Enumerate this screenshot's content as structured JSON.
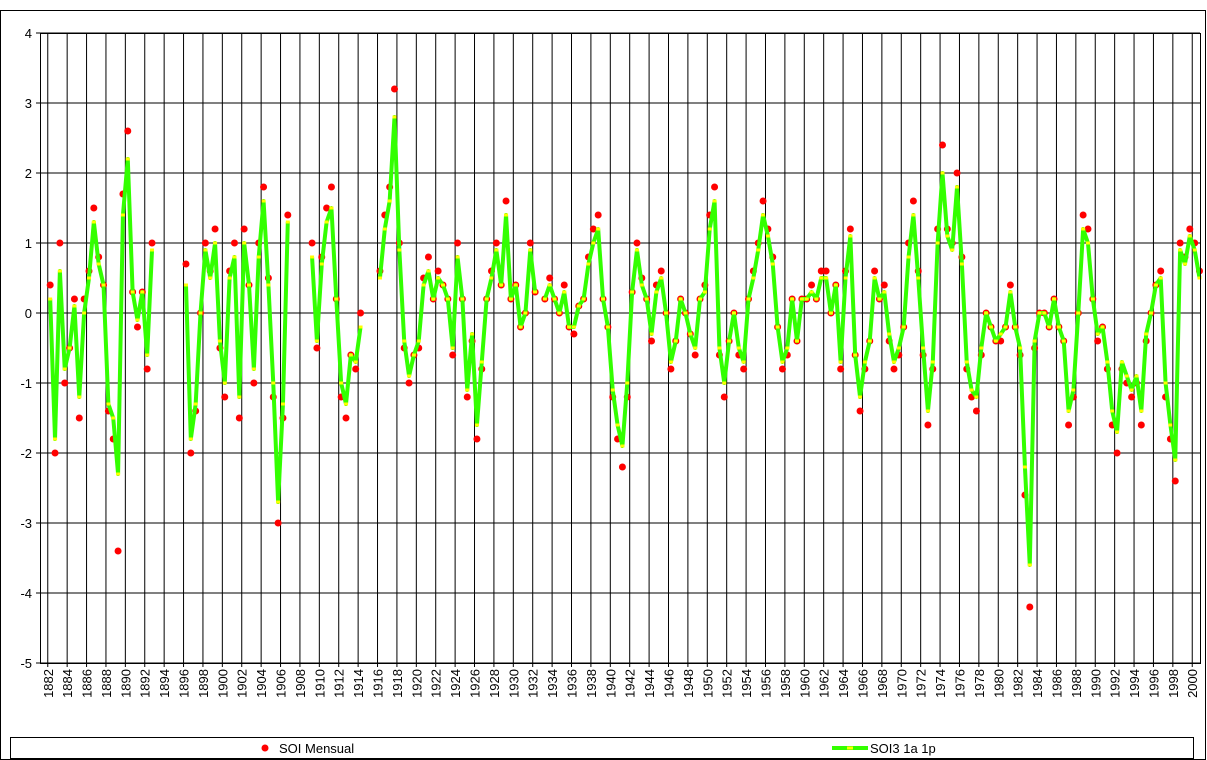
{
  "chart_data": {
    "type": "line",
    "x": [
      1882.25,
      1882.75,
      1883.25,
      1883.75,
      1884.25,
      1884.75,
      1885.25,
      1885.75,
      1886.25,
      1886.75,
      1887.25,
      1887.75,
      1888.25,
      1888.75,
      1889.25,
      1889.75,
      1890.25,
      1890.75,
      1891.25,
      1891.75,
      1892.25,
      1892.75,
      1893.25,
      1893.75,
      1894.25,
      1894.75,
      1895.25,
      1895.75,
      1896.25,
      1896.75,
      1897.25,
      1897.75,
      1898.25,
      1898.75,
      1899.25,
      1899.75,
      1900.25,
      1900.75,
      1901.25,
      1901.75,
      1902.25,
      1902.75,
      1903.25,
      1903.75,
      1904.25,
      1904.75,
      1905.25,
      1905.75,
      1906.25,
      1906.75,
      1907.25,
      1907.75,
      1908.25,
      1908.75,
      1909.25,
      1909.75,
      1910.25,
      1910.75,
      1911.25,
      1911.75,
      1912.25,
      1912.75,
      1913.25,
      1913.75,
      1914.25,
      1914.75,
      1915.25,
      1915.75,
      1916.25,
      1916.75,
      1917.25,
      1917.75,
      1918.25,
      1918.75,
      1919.25,
      1919.75,
      1920.25,
      1920.75,
      1921.25,
      1921.75,
      1922.25,
      1922.75,
      1923.25,
      1923.75,
      1924.25,
      1924.75,
      1925.25,
      1925.75,
      1926.25,
      1926.75,
      1927.25,
      1927.75,
      1928.25,
      1928.75,
      1929.25,
      1929.75,
      1930.25,
      1930.75,
      1931.25,
      1931.75,
      1932.25,
      1932.75,
      1933.25,
      1933.75,
      1934.25,
      1934.75,
      1935.25,
      1935.75,
      1936.25,
      1936.75,
      1937.25,
      1937.75,
      1938.25,
      1938.75,
      1939.25,
      1939.75,
      1940.25,
      1940.75,
      1941.25,
      1941.75,
      1942.25,
      1942.75,
      1943.25,
      1943.75,
      1944.25,
      1944.75,
      1945.25,
      1945.75,
      1946.25,
      1946.75,
      1947.25,
      1947.75,
      1948.25,
      1948.75,
      1949.25,
      1949.75,
      1950.25,
      1950.75,
      1951.25,
      1951.75,
      1952.25,
      1952.75,
      1953.25,
      1953.75,
      1954.25,
      1954.75,
      1955.25,
      1955.75,
      1956.25,
      1956.75,
      1957.25,
      1957.75,
      1958.25,
      1958.75,
      1959.25,
      1959.75,
      1960.25,
      1960.75,
      1961.25,
      1961.75,
      1962.25,
      1962.75,
      1963.25,
      1963.75,
      1964.25,
      1964.75,
      1965.25,
      1965.75,
      1966.25,
      1966.75,
      1967.25,
      1967.75,
      1968.25,
      1968.75,
      1969.25,
      1969.75,
      1970.25,
      1970.75,
      1971.25,
      1971.75,
      1972.25,
      1972.75,
      1973.25,
      1973.75,
      1974.25,
      1974.75,
      1975.25,
      1975.75,
      1976.25,
      1976.75,
      1977.25,
      1977.75,
      1978.25,
      1978.75,
      1979.25,
      1979.75,
      1980.25,
      1980.75,
      1981.25,
      1981.75,
      1982.25,
      1982.75,
      1983.25,
      1983.75,
      1984.25,
      1984.75,
      1985.25,
      1985.75,
      1986.25,
      1986.75,
      1987.25,
      1987.75,
      1988.25,
      1988.75,
      1989.25,
      1989.75,
      1990.25,
      1990.75,
      1991.25,
      1991.75,
      1992.25,
      1992.75,
      1993.25,
      1993.75,
      1994.25,
      1994.75,
      1995.25,
      1995.75,
      1996.25,
      1996.75,
      1997.25,
      1997.75,
      1998.25,
      1998.75,
      1999.25,
      1999.75,
      2000.25,
      2000.75
    ],
    "series": [
      {
        "name": "SOI Mensual",
        "type": "scatter",
        "color": "#ff0000",
        "values": [
          0.4,
          -2.0,
          1.0,
          -1.0,
          -0.5,
          0.2,
          -1.5,
          0.2,
          0.6,
          1.5,
          0.8,
          0.4,
          -1.4,
          -1.8,
          -3.4,
          1.7,
          2.6,
          0.3,
          -0.2,
          0.3,
          -0.8,
          1.0,
          null,
          null,
          null,
          null,
          null,
          null,
          0.7,
          -2.0,
          -1.4,
          0.0,
          1.0,
          0.6,
          1.2,
          -0.5,
          -1.2,
          0.6,
          1.0,
          -1.5,
          1.2,
          0.4,
          -1.0,
          1.0,
          1.8,
          0.5,
          -1.2,
          -3.0,
          -1.5,
          1.4,
          null,
          null,
          null,
          null,
          1.0,
          -0.5,
          0.8,
          1.5,
          1.8,
          0.2,
          -1.2,
          -1.5,
          -0.6,
          -0.8,
          0.0,
          null,
          null,
          null,
          0.6,
          1.4,
          1.8,
          3.2,
          1.0,
          -0.5,
          -1.0,
          -0.6,
          -0.5,
          0.5,
          0.8,
          0.2,
          0.6,
          0.4,
          0.2,
          -0.6,
          1.0,
          0.2,
          -1.2,
          -0.4,
          -1.8,
          -0.8,
          0.2,
          0.6,
          1.0,
          0.4,
          1.6,
          0.2,
          0.4,
          -0.2,
          0.0,
          1.0,
          0.3,
          null,
          0.2,
          0.5,
          0.2,
          0.0,
          0.4,
          -0.2,
          -0.3,
          0.1,
          0.2,
          0.8,
          1.2,
          1.4,
          0.2,
          -0.2,
          -1.2,
          -1.8,
          -2.2,
          -1.2,
          0.3,
          1.0,
          0.5,
          0.2,
          -0.4,
          0.4,
          0.6,
          0.0,
          -0.8,
          -0.4,
          0.2,
          0.0,
          -0.3,
          -0.6,
          0.2,
          0.4,
          1.4,
          1.8,
          -0.6,
          -1.2,
          -0.4,
          0.0,
          -0.6,
          -0.8,
          0.2,
          0.6,
          1.0,
          1.6,
          1.2,
          0.8,
          -0.2,
          -0.8,
          -0.6,
          0.2,
          -0.4,
          0.2,
          0.2,
          0.4,
          0.2,
          0.6,
          0.6,
          0.0,
          0.4,
          -0.8,
          0.6,
          1.2,
          -0.6,
          -1.4,
          -0.8,
          -0.4,
          0.6,
          0.2,
          0.4,
          -0.4,
          -0.8,
          -0.6,
          -0.2,
          1.0,
          1.6,
          0.6,
          -0.6,
          -1.6,
          -0.8,
          1.2,
          2.4,
          1.2,
          1.0,
          2.0,
          0.8,
          -0.8,
          -1.2,
          -1.4,
          -0.6,
          0.0,
          -0.2,
          -0.4,
          -0.4,
          -0.2,
          0.4,
          -0.2,
          -0.6,
          -2.6,
          -4.2,
          -0.5,
          0.0,
          0.0,
          -0.2,
          0.2,
          -0.2,
          -0.4,
          -1.6,
          -1.2,
          0.0,
          1.4,
          1.2,
          0.2,
          -0.4,
          -0.2,
          -0.8,
          -1.6,
          -2.0,
          -0.8,
          -1.0,
          -1.2,
          -1.0,
          -1.6,
          -0.4,
          0.0,
          0.4,
          0.6,
          -1.2,
          -1.8,
          -2.4,
          1.0,
          0.8,
          1.2,
          1.0,
          0.6
        ]
      },
      {
        "name": "SOI3 1a 1p",
        "type": "line",
        "color": "#33ff00",
        "marker_color": "#ffff00",
        "values": [
          0.2,
          -1.8,
          0.6,
          -0.8,
          -0.5,
          0.1,
          -1.2,
          0.0,
          0.5,
          1.3,
          0.7,
          0.4,
          -1.3,
          -1.5,
          -2.3,
          1.4,
          2.2,
          0.3,
          -0.1,
          0.3,
          -0.6,
          0.9,
          null,
          null,
          null,
          null,
          null,
          null,
          0.4,
          -1.8,
          -1.3,
          0.0,
          0.9,
          0.5,
          1.0,
          -0.4,
          -1.0,
          0.5,
          0.8,
          -1.2,
          1.0,
          0.4,
          -0.8,
          0.8,
          1.6,
          0.4,
          -1.0,
          -2.7,
          -1.3,
          1.3,
          null,
          null,
          null,
          null,
          0.8,
          -0.4,
          0.7,
          1.3,
          1.5,
          0.2,
          -1.0,
          -1.3,
          -0.6,
          -0.7,
          -0.2,
          null,
          null,
          null,
          0.5,
          1.2,
          1.6,
          2.8,
          0.9,
          -0.4,
          -0.9,
          -0.6,
          -0.4,
          0.4,
          0.6,
          0.2,
          0.5,
          0.4,
          0.2,
          -0.5,
          0.8,
          0.2,
          -1.1,
          -0.3,
          -1.6,
          -0.7,
          0.2,
          0.5,
          0.9,
          0.4,
          1.4,
          0.2,
          0.4,
          -0.2,
          0.0,
          0.9,
          0.3,
          null,
          0.2,
          0.4,
          0.2,
          0.0,
          0.3,
          -0.2,
          -0.2,
          0.1,
          0.2,
          0.7,
          1.0,
          1.2,
          0.2,
          -0.2,
          -1.1,
          -1.6,
          -1.9,
          -1.0,
          0.3,
          0.9,
          0.4,
          0.2,
          -0.3,
          0.3,
          0.5,
          0.0,
          -0.7,
          -0.4,
          0.2,
          0.0,
          -0.3,
          -0.5,
          0.2,
          0.3,
          1.2,
          1.6,
          -0.5,
          -1.0,
          -0.4,
          0.0,
          -0.5,
          -0.7,
          0.2,
          0.5,
          0.9,
          1.4,
          1.1,
          0.7,
          -0.2,
          -0.7,
          -0.5,
          0.2,
          -0.4,
          0.2,
          0.2,
          0.3,
          0.2,
          0.5,
          0.5,
          0.0,
          0.4,
          -0.7,
          0.5,
          1.1,
          -0.6,
          -1.2,
          -0.7,
          -0.4,
          0.5,
          0.2,
          0.3,
          -0.3,
          -0.7,
          -0.5,
          -0.2,
          0.8,
          1.4,
          0.5,
          -0.5,
          -1.4,
          -0.7,
          1.0,
          2.0,
          1.1,
          0.9,
          1.8,
          0.7,
          -0.7,
          -1.1,
          -1.2,
          -0.5,
          0.0,
          -0.2,
          -0.4,
          -0.3,
          -0.2,
          0.3,
          -0.2,
          -0.5,
          -2.2,
          -3.6,
          -0.4,
          0.0,
          0.0,
          -0.2,
          0.2,
          -0.2,
          -0.4,
          -1.4,
          -1.1,
          0.0,
          1.2,
          1.0,
          0.2,
          -0.3,
          -0.2,
          -0.7,
          -1.4,
          -1.7,
          -0.7,
          -0.9,
          -1.1,
          -0.9,
          -1.4,
          -0.3,
          0.0,
          0.4,
          0.5,
          -1.0,
          -1.6,
          -2.1,
          0.9,
          0.7,
          1.1,
          0.9,
          0.5
        ]
      }
    ],
    "xlim": [
      1881.2,
      2000.8
    ],
    "xticks": [
      1882,
      1884,
      1886,
      1888,
      1890,
      1892,
      1894,
      1896,
      1898,
      1900,
      1902,
      1904,
      1906,
      1908,
      1910,
      1912,
      1914,
      1916,
      1918,
      1920,
      1922,
      1924,
      1926,
      1928,
      1930,
      1932,
      1934,
      1936,
      1938,
      1940,
      1942,
      1944,
      1946,
      1948,
      1950,
      1952,
      1954,
      1956,
      1958,
      1960,
      1962,
      1964,
      1966,
      1968,
      1970,
      1972,
      1974,
      1976,
      1978,
      1980,
      1982,
      1984,
      1986,
      1988,
      1990,
      1992,
      1994,
      1996,
      1998,
      2000
    ],
    "ylim": [
      -5,
      4
    ],
    "yticks": [
      -5,
      -4,
      -3,
      -2,
      -1,
      0,
      1,
      2,
      3,
      4
    ],
    "grid": true,
    "legend": "bottom"
  }
}
